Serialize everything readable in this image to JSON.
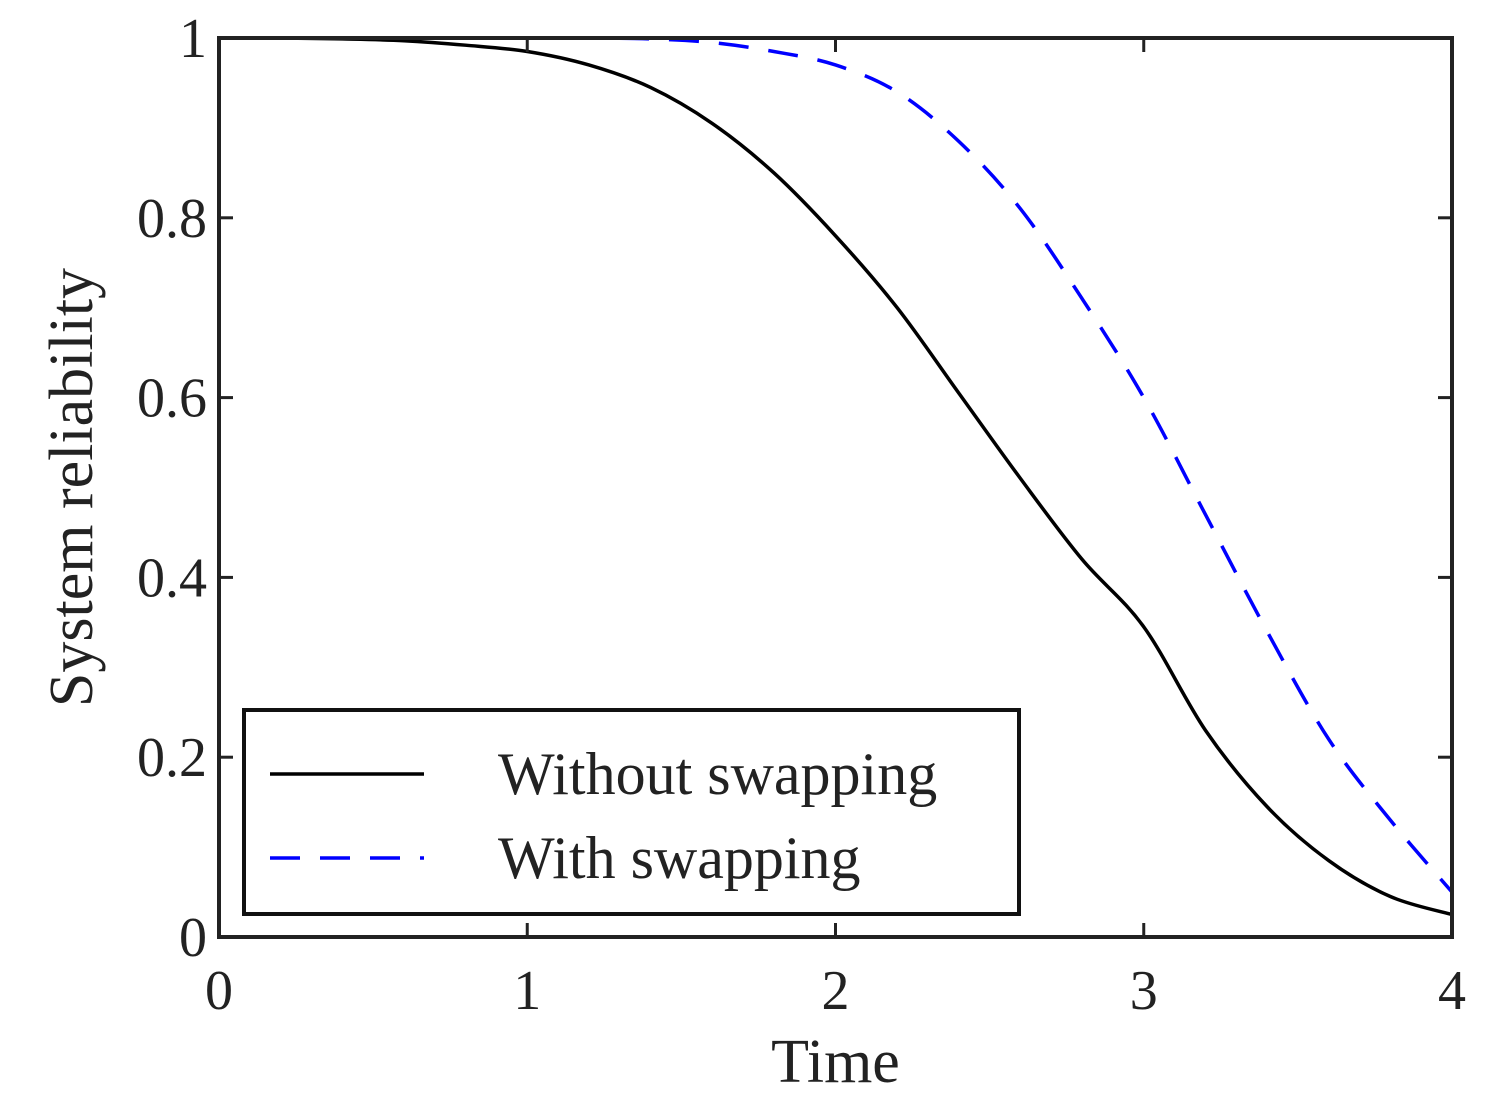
{
  "chart_data": {
    "type": "line",
    "title": "",
    "xlabel": "Time",
    "ylabel": "System reliability",
    "xlim": [
      0,
      4
    ],
    "ylim": [
      0,
      1
    ],
    "xticks": [
      0,
      1,
      2,
      3,
      4
    ],
    "xtick_labels": [
      "0",
      "1",
      "2",
      "3",
      "4"
    ],
    "yticks": [
      0,
      0.2,
      0.4,
      0.6,
      0.8,
      1
    ],
    "ytick_labels": [
      "0",
      "0.2",
      "0.4",
      "0.6",
      "0.8",
      "1"
    ],
    "grid": false,
    "legend_position": "bottom-left",
    "x": [
      0,
      0.2,
      0.4,
      0.6,
      0.8,
      1.0,
      1.2,
      1.4,
      1.6,
      1.8,
      2.0,
      2.2,
      2.4,
      2.6,
      2.8,
      3.0,
      3.2,
      3.4,
      3.6,
      3.8,
      4.0
    ],
    "series": [
      {
        "name": "Without swapping",
        "color": "#000000",
        "dash": "solid",
        "values": [
          1.0,
          1.0,
          0.999,
          0.997,
          0.992,
          0.985,
          0.97,
          0.945,
          0.905,
          0.85,
          0.78,
          0.7,
          0.605,
          0.51,
          0.42,
          0.345,
          0.23,
          0.145,
          0.085,
          0.045,
          0.025
        ]
      },
      {
        "name": "With swapping",
        "color": "#0000ff",
        "dash": "dashed",
        "values": [
          1.0,
          1.0,
          1.0,
          1.0,
          1.0,
          1.0,
          1.0,
          0.999,
          0.995,
          0.985,
          0.97,
          0.94,
          0.885,
          0.81,
          0.71,
          0.6,
          0.47,
          0.34,
          0.22,
          0.13,
          0.05
        ]
      }
    ]
  }
}
